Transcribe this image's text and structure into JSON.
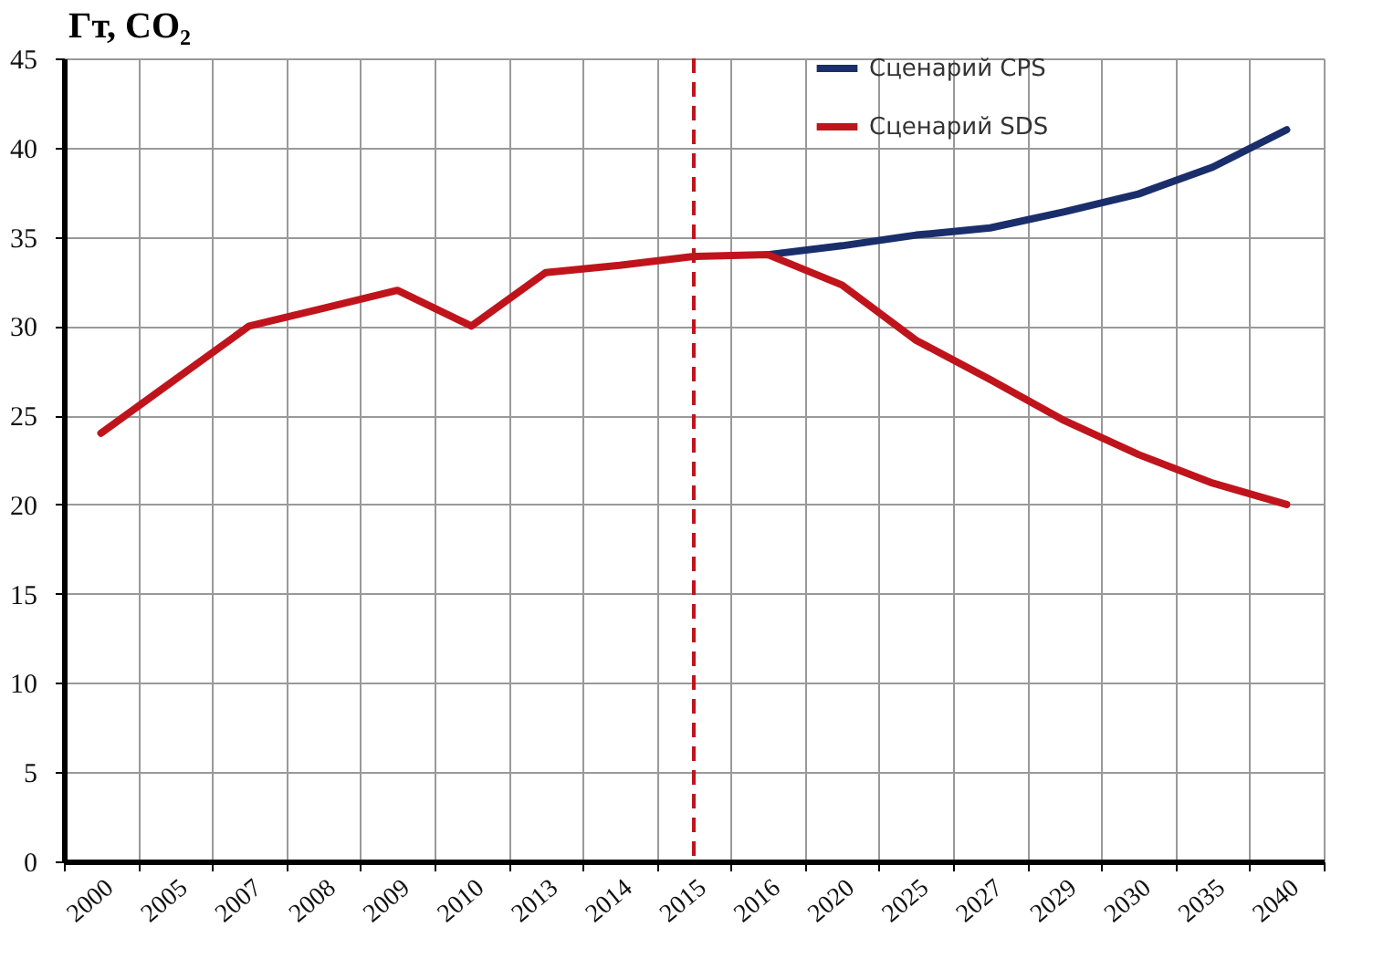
{
  "chart_data": {
    "type": "line",
    "ylabel": "Гт, CO₂",
    "categories": [
      "2000",
      "2005",
      "2007",
      "2008",
      "2009",
      "2010",
      "2013",
      "2014",
      "2015",
      "2016",
      "2020",
      "2025",
      "2027",
      "2029",
      "2030",
      "2035",
      "2040"
    ],
    "series": [
      {
        "name": "Сценарий CPS",
        "color": "#1a2e6b",
        "values": [
          null,
          null,
          null,
          null,
          null,
          null,
          null,
          null,
          null,
          34,
          34.5,
          35.1,
          35.5,
          36.4,
          37.4,
          38.9,
          41
        ]
      },
      {
        "name": "Сценарий SDS",
        "color": "#c0141c",
        "values": [
          24,
          27,
          30,
          31,
          32,
          30,
          33,
          33.4,
          33.9,
          34,
          32.3,
          29.2,
          27,
          24.7,
          22.8,
          21.2,
          20
        ]
      }
    ],
    "ylim": [
      0,
      45
    ],
    "yticks": [
      0,
      5,
      10,
      15,
      20,
      25,
      30,
      35,
      40,
      45
    ],
    "grid": true,
    "legend": "top",
    "marker": "none",
    "line_style": "solid",
    "ref_lines": [
      {
        "axis": "x",
        "value": "2015",
        "color": "#c0141c",
        "line_style": "dashed"
      }
    ]
  }
}
